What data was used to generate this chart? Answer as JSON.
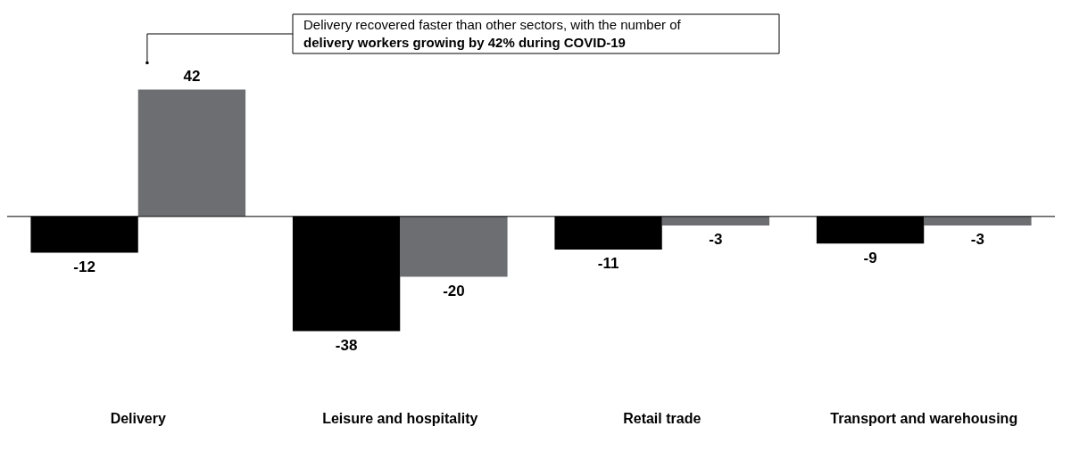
{
  "chart_data": {
    "type": "bar",
    "categories": [
      "Delivery",
      "Leisure and hospitality",
      "Retail trade",
      "Transport and warehousing"
    ],
    "series": [
      {
        "color": "#000000",
        "values": [
          -12,
          -38,
          -11,
          -9
        ]
      },
      {
        "color": "#6d6e71",
        "values": [
          42,
          -20,
          -3,
          -3
        ]
      }
    ],
    "data_labels": true,
    "legend": false,
    "grid": false,
    "annotations": [
      "Delivery recovered faster than other sectors, with the number of",
      "delivery workers growing by 42% during COVID-19"
    ]
  }
}
